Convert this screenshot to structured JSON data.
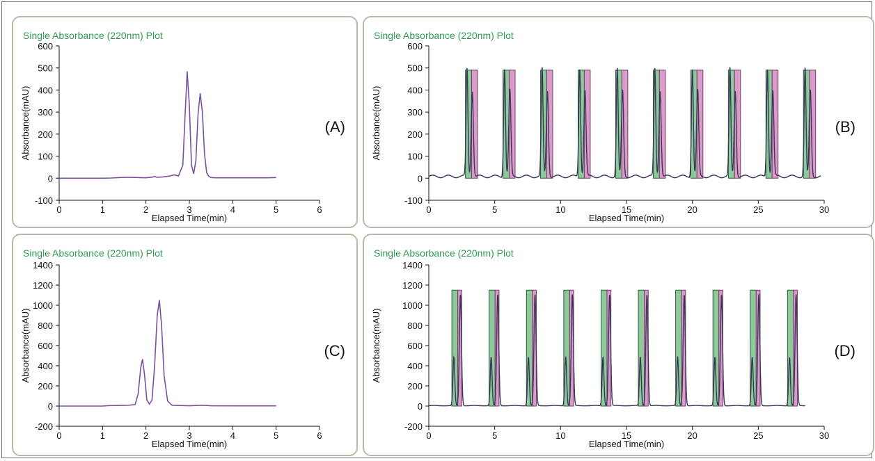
{
  "chart_data": [
    {
      "id": "A",
      "type": "line",
      "title": "Single Absorbance (220nm) Plot",
      "panel_label": "(A)",
      "xlabel": "Elapsed Time(min)",
      "ylabel": "Absorbance(mAU)",
      "xlim": [
        0,
        6
      ],
      "ylim": [
        -100,
        600
      ],
      "xticks": [
        0,
        1,
        2,
        3,
        4,
        5,
        6
      ],
      "yticks": [
        -100,
        0,
        100,
        200,
        300,
        400,
        500,
        600
      ],
      "series": [
        {
          "color": "#7b4fa0",
          "x": [
            0.0,
            0.5,
            1.0,
            1.2,
            1.4,
            1.6,
            1.8,
            2.0,
            2.15,
            2.2,
            2.25,
            2.4,
            2.55,
            2.65,
            2.75,
            2.85,
            2.9,
            2.95,
            3.0,
            3.05,
            3.1,
            3.15,
            3.2,
            3.25,
            3.3,
            3.35,
            3.4,
            3.45,
            3.5,
            3.6,
            4.0,
            4.5,
            4.8,
            5.0
          ],
          "y": [
            0,
            0,
            0,
            1,
            3,
            4,
            3,
            2,
            5,
            8,
            4,
            6,
            10,
            15,
            10,
            60,
            280,
            485,
            330,
            60,
            20,
            80,
            290,
            385,
            300,
            110,
            25,
            8,
            3,
            2,
            2,
            2,
            2,
            3
          ]
        }
      ]
    },
    {
      "id": "B",
      "type": "line",
      "title": "Single Absorbance (220nm) Plot",
      "panel_label": "(B)",
      "xlabel": "Elapsed Time(min)",
      "ylabel": "Absorbance(mAU)",
      "xlim": [
        0,
        30
      ],
      "ylim": [
        -100,
        600
      ],
      "xticks": [
        0,
        5,
        10,
        15,
        20,
        25,
        30
      ],
      "yticks": [
        -100,
        0,
        100,
        200,
        300,
        400,
        500,
        600
      ],
      "injections": 10,
      "first_peak_at": 2.9,
      "cycle_min": 2.85,
      "peak_heights": [
        490,
        390
      ],
      "fraction_height": 490,
      "fraction_colors": [
        "#8dc99a",
        "#d99cc8"
      ],
      "series_color": "#39365a"
    },
    {
      "id": "C",
      "type": "line",
      "title": "Single Absorbance (220nm) Plot",
      "panel_label": "(C)",
      "xlabel": "Elapsed Time(min)",
      "ylabel": "Absorbance(mAU)",
      "xlim": [
        0,
        6
      ],
      "ylim": [
        -200,
        1400
      ],
      "xticks": [
        0,
        1,
        2,
        3,
        4,
        5,
        6
      ],
      "yticks": [
        -200,
        0,
        200,
        400,
        600,
        800,
        1000,
        1200,
        1400
      ],
      "series": [
        {
          "color": "#7b4fa0",
          "x": [
            0.0,
            0.5,
            1.0,
            1.15,
            1.4,
            1.6,
            1.75,
            1.82,
            1.88,
            1.92,
            1.97,
            2.02,
            2.08,
            2.14,
            2.2,
            2.26,
            2.31,
            2.36,
            2.42,
            2.5,
            2.6,
            3.0,
            3.3,
            3.5,
            4.0,
            4.5,
            5.0
          ],
          "y": [
            0,
            0,
            0,
            5,
            6,
            8,
            15,
            120,
            380,
            465,
            300,
            60,
            20,
            60,
            400,
            900,
            1050,
            800,
            300,
            50,
            8,
            3,
            8,
            3,
            2,
            2,
            2
          ]
        }
      ]
    },
    {
      "id": "D",
      "type": "line",
      "title": "Single Absorbance (220nm) Plot",
      "panel_label": "(D)",
      "xlabel": "Elapsed Time(min)",
      "ylabel": "Absorbance(mAU)",
      "xlim": [
        0,
        30
      ],
      "ylim": [
        -200,
        1400
      ],
      "xticks": [
        0,
        5,
        10,
        15,
        20,
        25,
        30
      ],
      "yticks": [
        -200,
        0,
        200,
        400,
        600,
        800,
        1000,
        1200,
        1400
      ],
      "injections": 10,
      "first_peak_at": 1.9,
      "cycle_min": 2.83,
      "peak_heights": [
        480,
        1100
      ],
      "fraction_height": 1150,
      "fraction_colors": [
        "#8dc99a",
        "#d99cc8"
      ],
      "series_color": "#39365a"
    }
  ]
}
